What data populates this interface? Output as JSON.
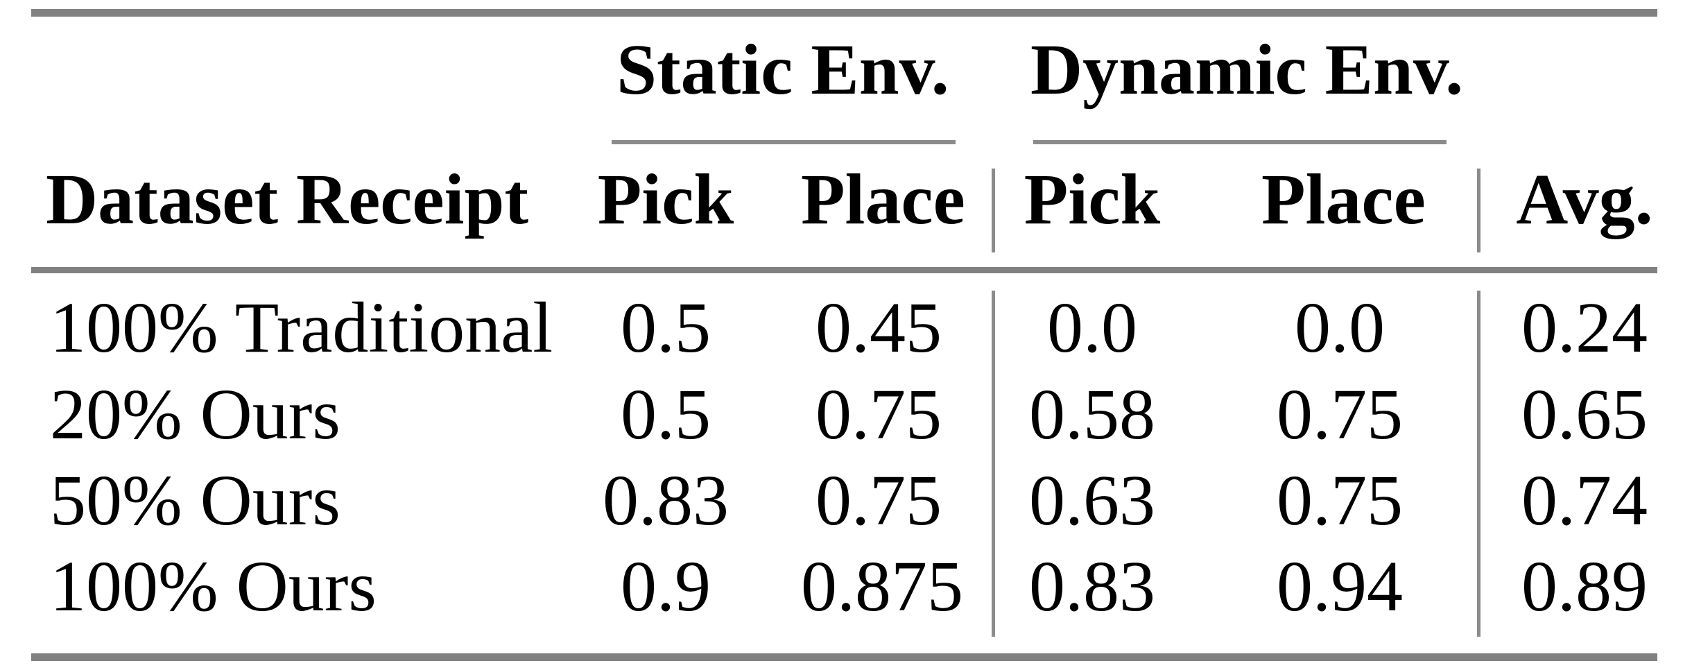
{
  "table": {
    "group_headers": {
      "static": "Static Env.",
      "dynamic": "Dynamic Env."
    },
    "header": {
      "label": "Dataset Receipt",
      "static_pick": "Pick",
      "static_place": "Place",
      "dynamic_pick": "Pick",
      "dynamic_place": "Place",
      "avg": "Avg."
    },
    "rows": [
      {
        "label": "100% Traditional",
        "cells": [
          "0.5",
          "0.45",
          "0.0",
          "0.0",
          "0.24"
        ]
      },
      {
        "label": "20% Ours",
        "cells": [
          "0.5",
          "0.75",
          "0.58",
          "0.75",
          "0.65"
        ]
      },
      {
        "label": "50% Ours",
        "cells": [
          "0.83",
          "0.75",
          "0.63",
          "0.75",
          "0.74"
        ]
      },
      {
        "label": "100% Ours",
        "cells": [
          "0.9",
          "0.875",
          "0.83",
          "0.94",
          "0.89"
        ]
      }
    ],
    "colors": {
      "thick_rule_gray": "#818181",
      "thin_rule_gray": "#8b8b8b",
      "text": "#000000",
      "background": "#ffffff"
    }
  }
}
